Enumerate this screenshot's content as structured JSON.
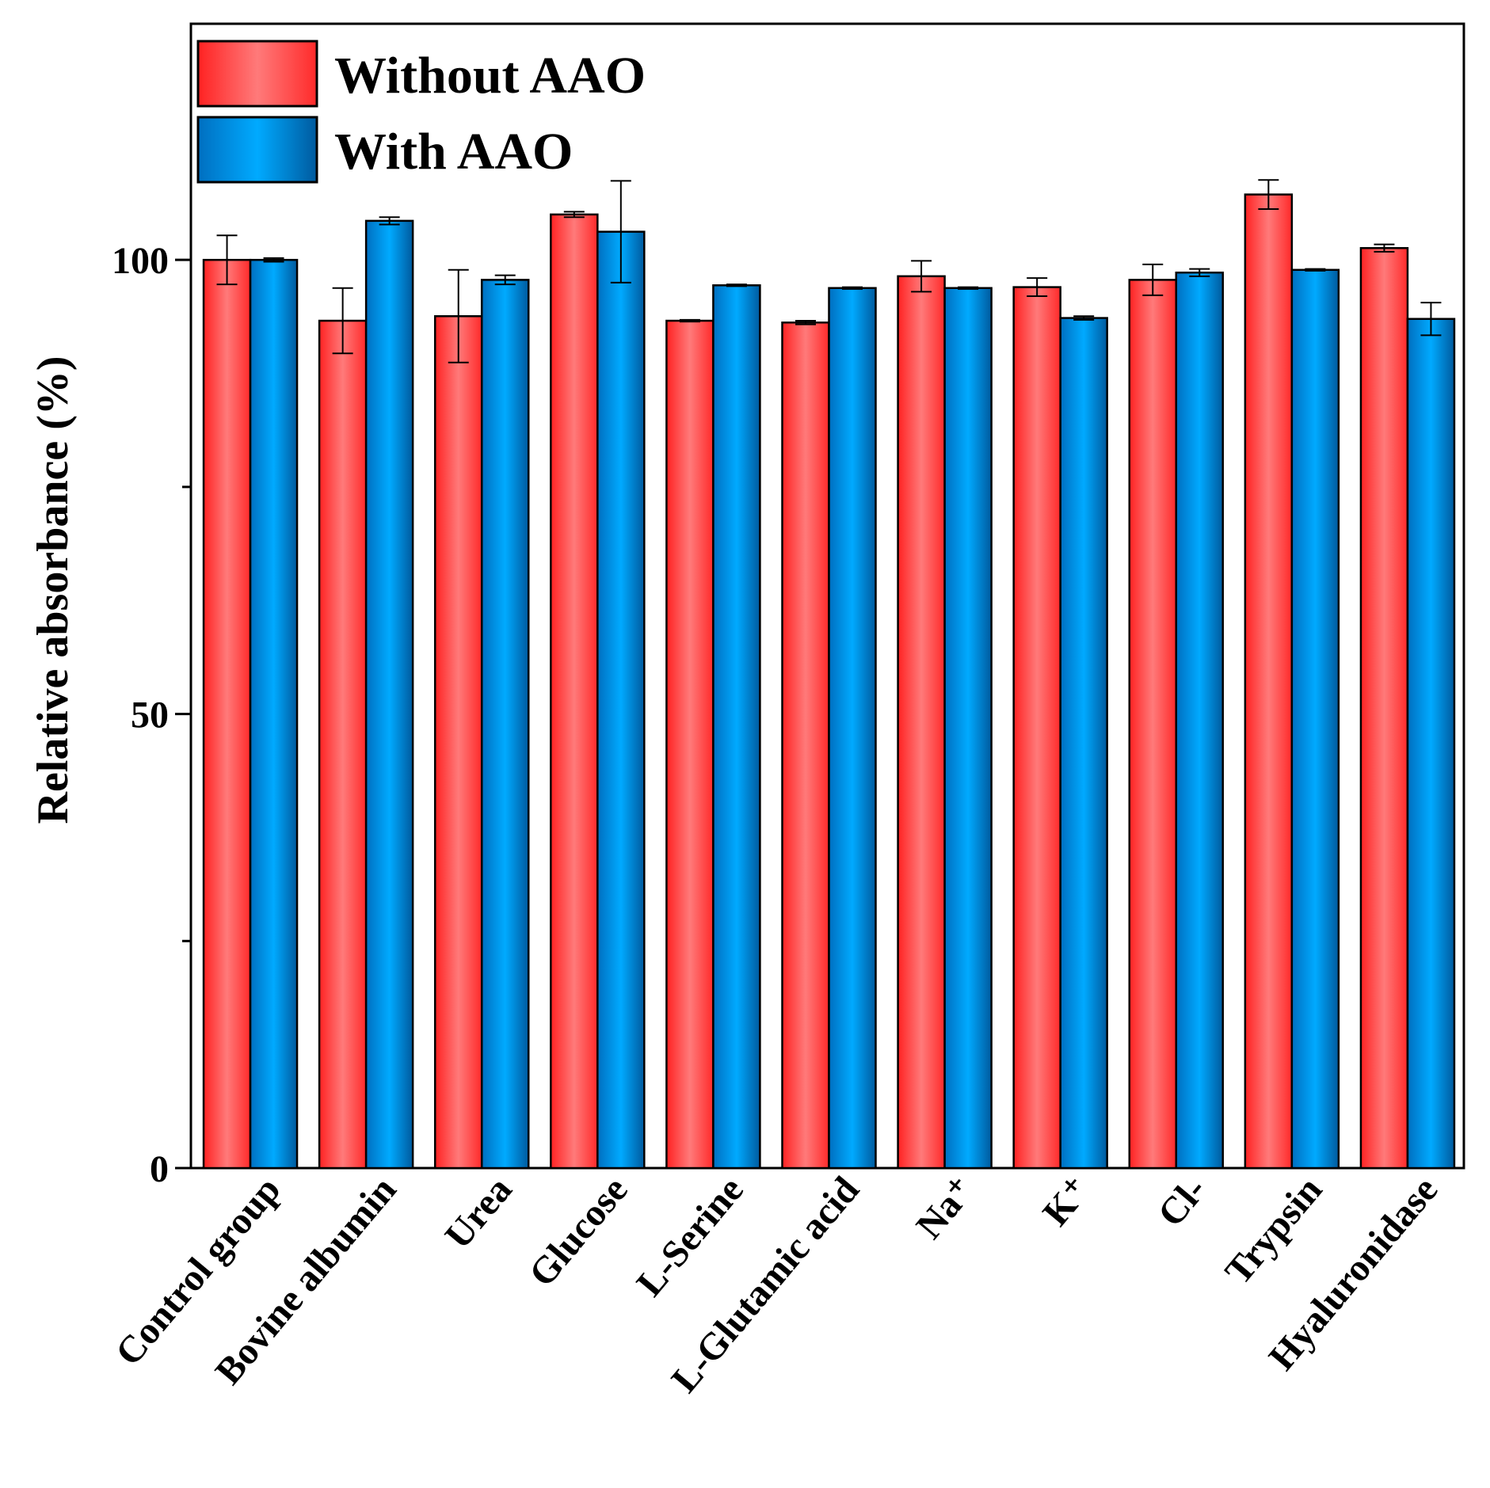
{
  "chart_data": {
    "type": "bar",
    "title": "",
    "xlabel": "",
    "ylabel": "Relative absorbance (%)",
    "ylim": [
      0,
      126
    ],
    "yticks": [
      0,
      50,
      100
    ],
    "yminor_ticks": [
      25,
      75
    ],
    "grid": false,
    "legend_position": "top-left",
    "categories": [
      "Control group",
      "Bovine albumin",
      "Urea",
      "Glucose",
      "L-Serine",
      "L-Glutamic acid",
      "Na⁺",
      "K⁺",
      "Cl-",
      "Trypsin",
      "Hyaluronidase"
    ],
    "series": [
      {
        "name": "Without AAO",
        "color": "#ff3a3a",
        "values": [
          100,
          93.3,
          93.8,
          105,
          93.3,
          93.1,
          98.2,
          97,
          97.8,
          107.2,
          101.3
        ],
        "errors": [
          2.7,
          3.6,
          5.1,
          0.3,
          0.1,
          0.2,
          1.7,
          1,
          1.7,
          1.6,
          0.4
        ]
      },
      {
        "name": "With AAO",
        "color": "#0a96f0",
        "values": [
          100,
          104.3,
          97.8,
          103.1,
          97.2,
          96.9,
          96.9,
          93.6,
          98.6,
          98.9,
          93.5
        ],
        "errors": [
          0.2,
          0.4,
          0.5,
          5.6,
          0.1,
          0.1,
          0.1,
          0.2,
          0.4,
          0.1,
          1.8
        ]
      }
    ]
  }
}
